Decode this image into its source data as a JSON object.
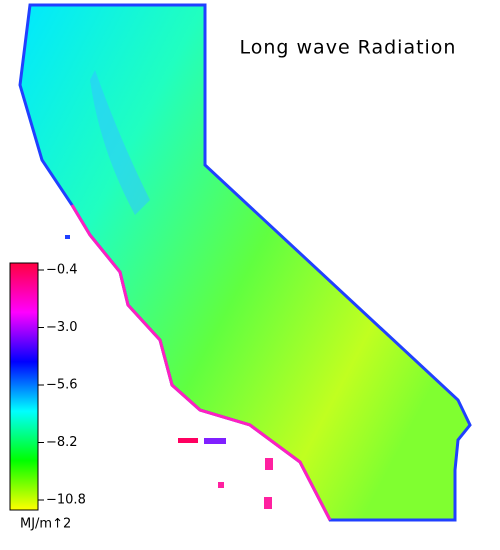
{
  "title": "Long wave Radiation",
  "colorbar": {
    "lim": [
      -10.8,
      -0.4
    ],
    "ticks": [
      {
        "value": -0.4,
        "label": "−0.4"
      },
      {
        "value": -3.0,
        "label": "−3.0"
      },
      {
        "value": -5.6,
        "label": "−5.6"
      },
      {
        "value": -8.2,
        "label": "−8.2"
      },
      {
        "value": -10.8,
        "label": "−10.8"
      }
    ],
    "colors": [
      "#ffff00",
      "#00ff00",
      "#00ffff",
      "#0000ff",
      "#ff00ff",
      "#ff0040"
    ],
    "unit": "MJ/m↑2"
  }
}
